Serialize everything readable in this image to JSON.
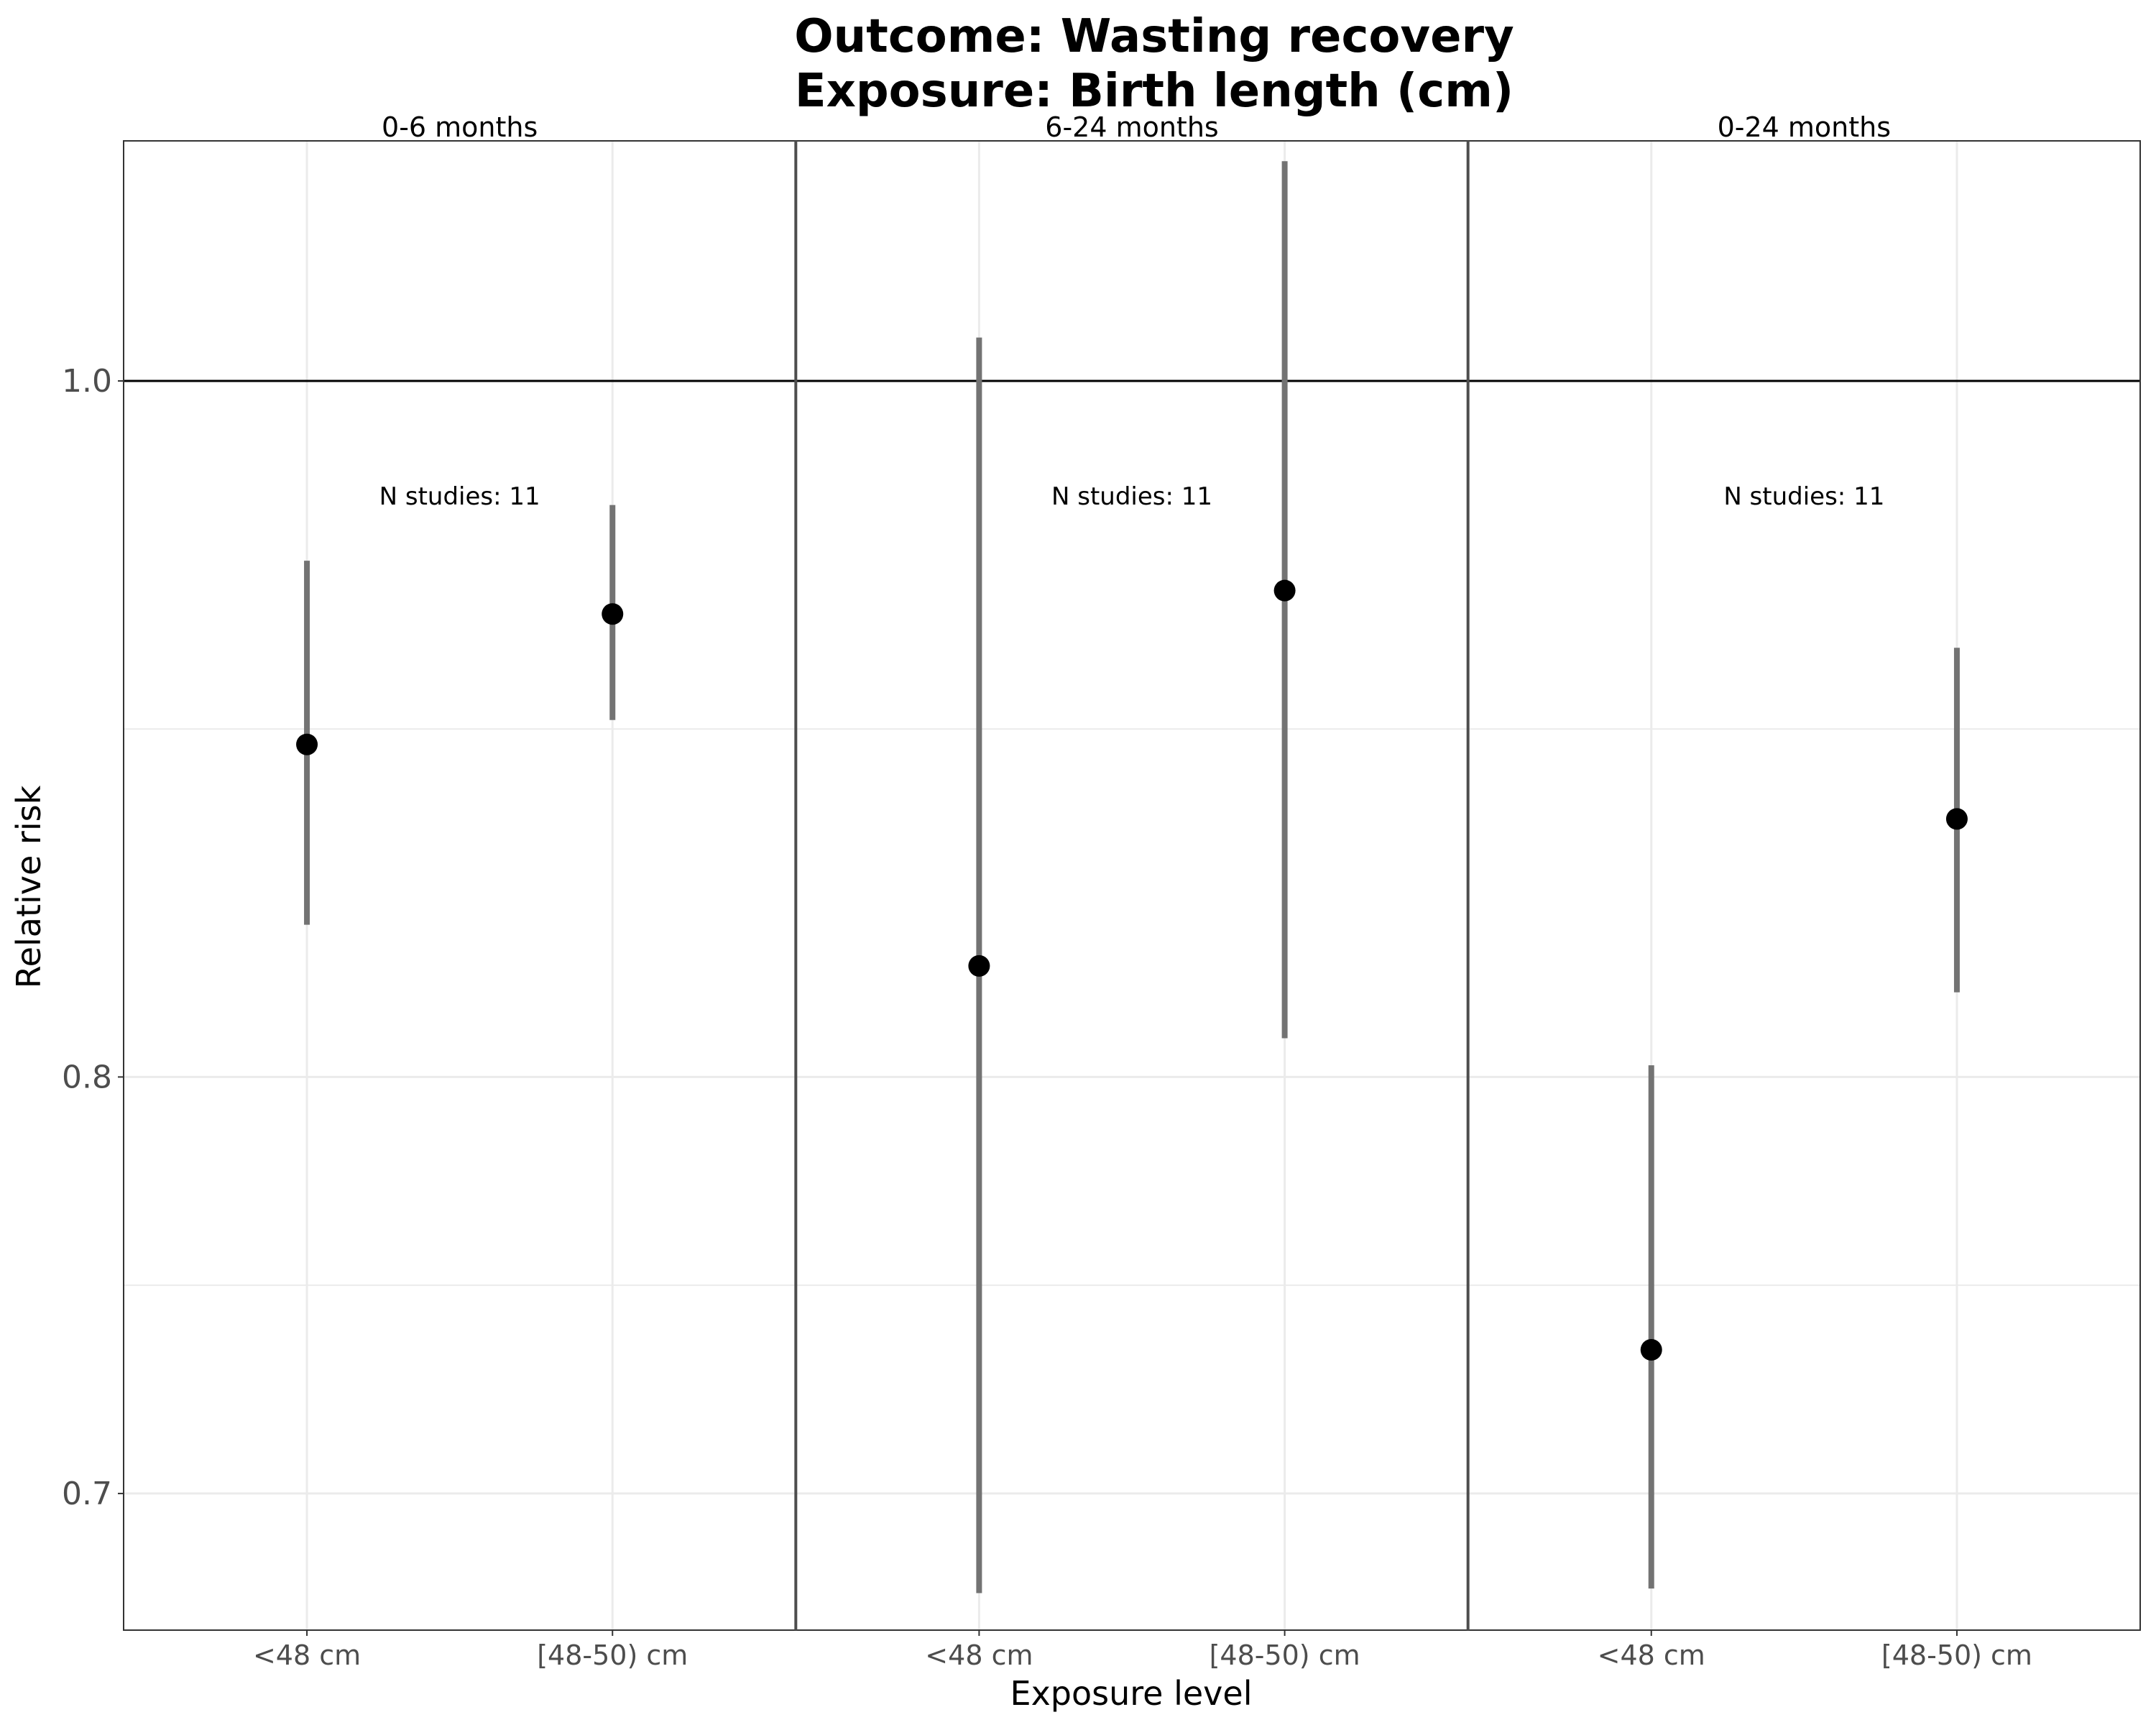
{
  "chart_data": {
    "type": "scatter",
    "title_line1": "Outcome: Wasting recovery",
    "title_line2": "Exposure: Birth length (cm)",
    "xlabel": "Exposure level",
    "ylabel": "Relative risk",
    "y_scale": "log",
    "ylim": [
      0.67,
      1.08
    ],
    "y_ticks": [
      0.7,
      0.8,
      1.0
    ],
    "y_tick_labels": [
      "0.7",
      "0.8",
      "1.0"
    ],
    "reference_line": 1.0,
    "grid": true,
    "categories": [
      "<48 cm",
      "[48-50) cm"
    ],
    "panels": [
      {
        "label": "0-6 months",
        "annotation": "N studies: 11",
        "points": [
          {
            "category": "<48 cm",
            "estimate": 0.89,
            "lower": 0.84,
            "upper": 0.944
          },
          {
            "category": "[48-50) cm",
            "estimate": 0.928,
            "lower": 0.897,
            "upper": 0.961
          }
        ]
      },
      {
        "label": "6-24 months",
        "annotation": "N studies: 11",
        "points": [
          {
            "category": "<48 cm",
            "estimate": 0.829,
            "lower": 0.678,
            "upper": 1.014
          },
          {
            "category": "[48-50) cm",
            "estimate": 0.935,
            "lower": 0.81,
            "upper": 1.073
          }
        ]
      },
      {
        "label": "0-24 months",
        "annotation": "N studies: 11",
        "points": [
          {
            "category": "<48 cm",
            "estimate": 0.733,
            "lower": 0.679,
            "upper": 0.803
          },
          {
            "category": "[48-50) cm",
            "estimate": 0.869,
            "lower": 0.822,
            "upper": 0.918
          }
        ]
      }
    ]
  }
}
